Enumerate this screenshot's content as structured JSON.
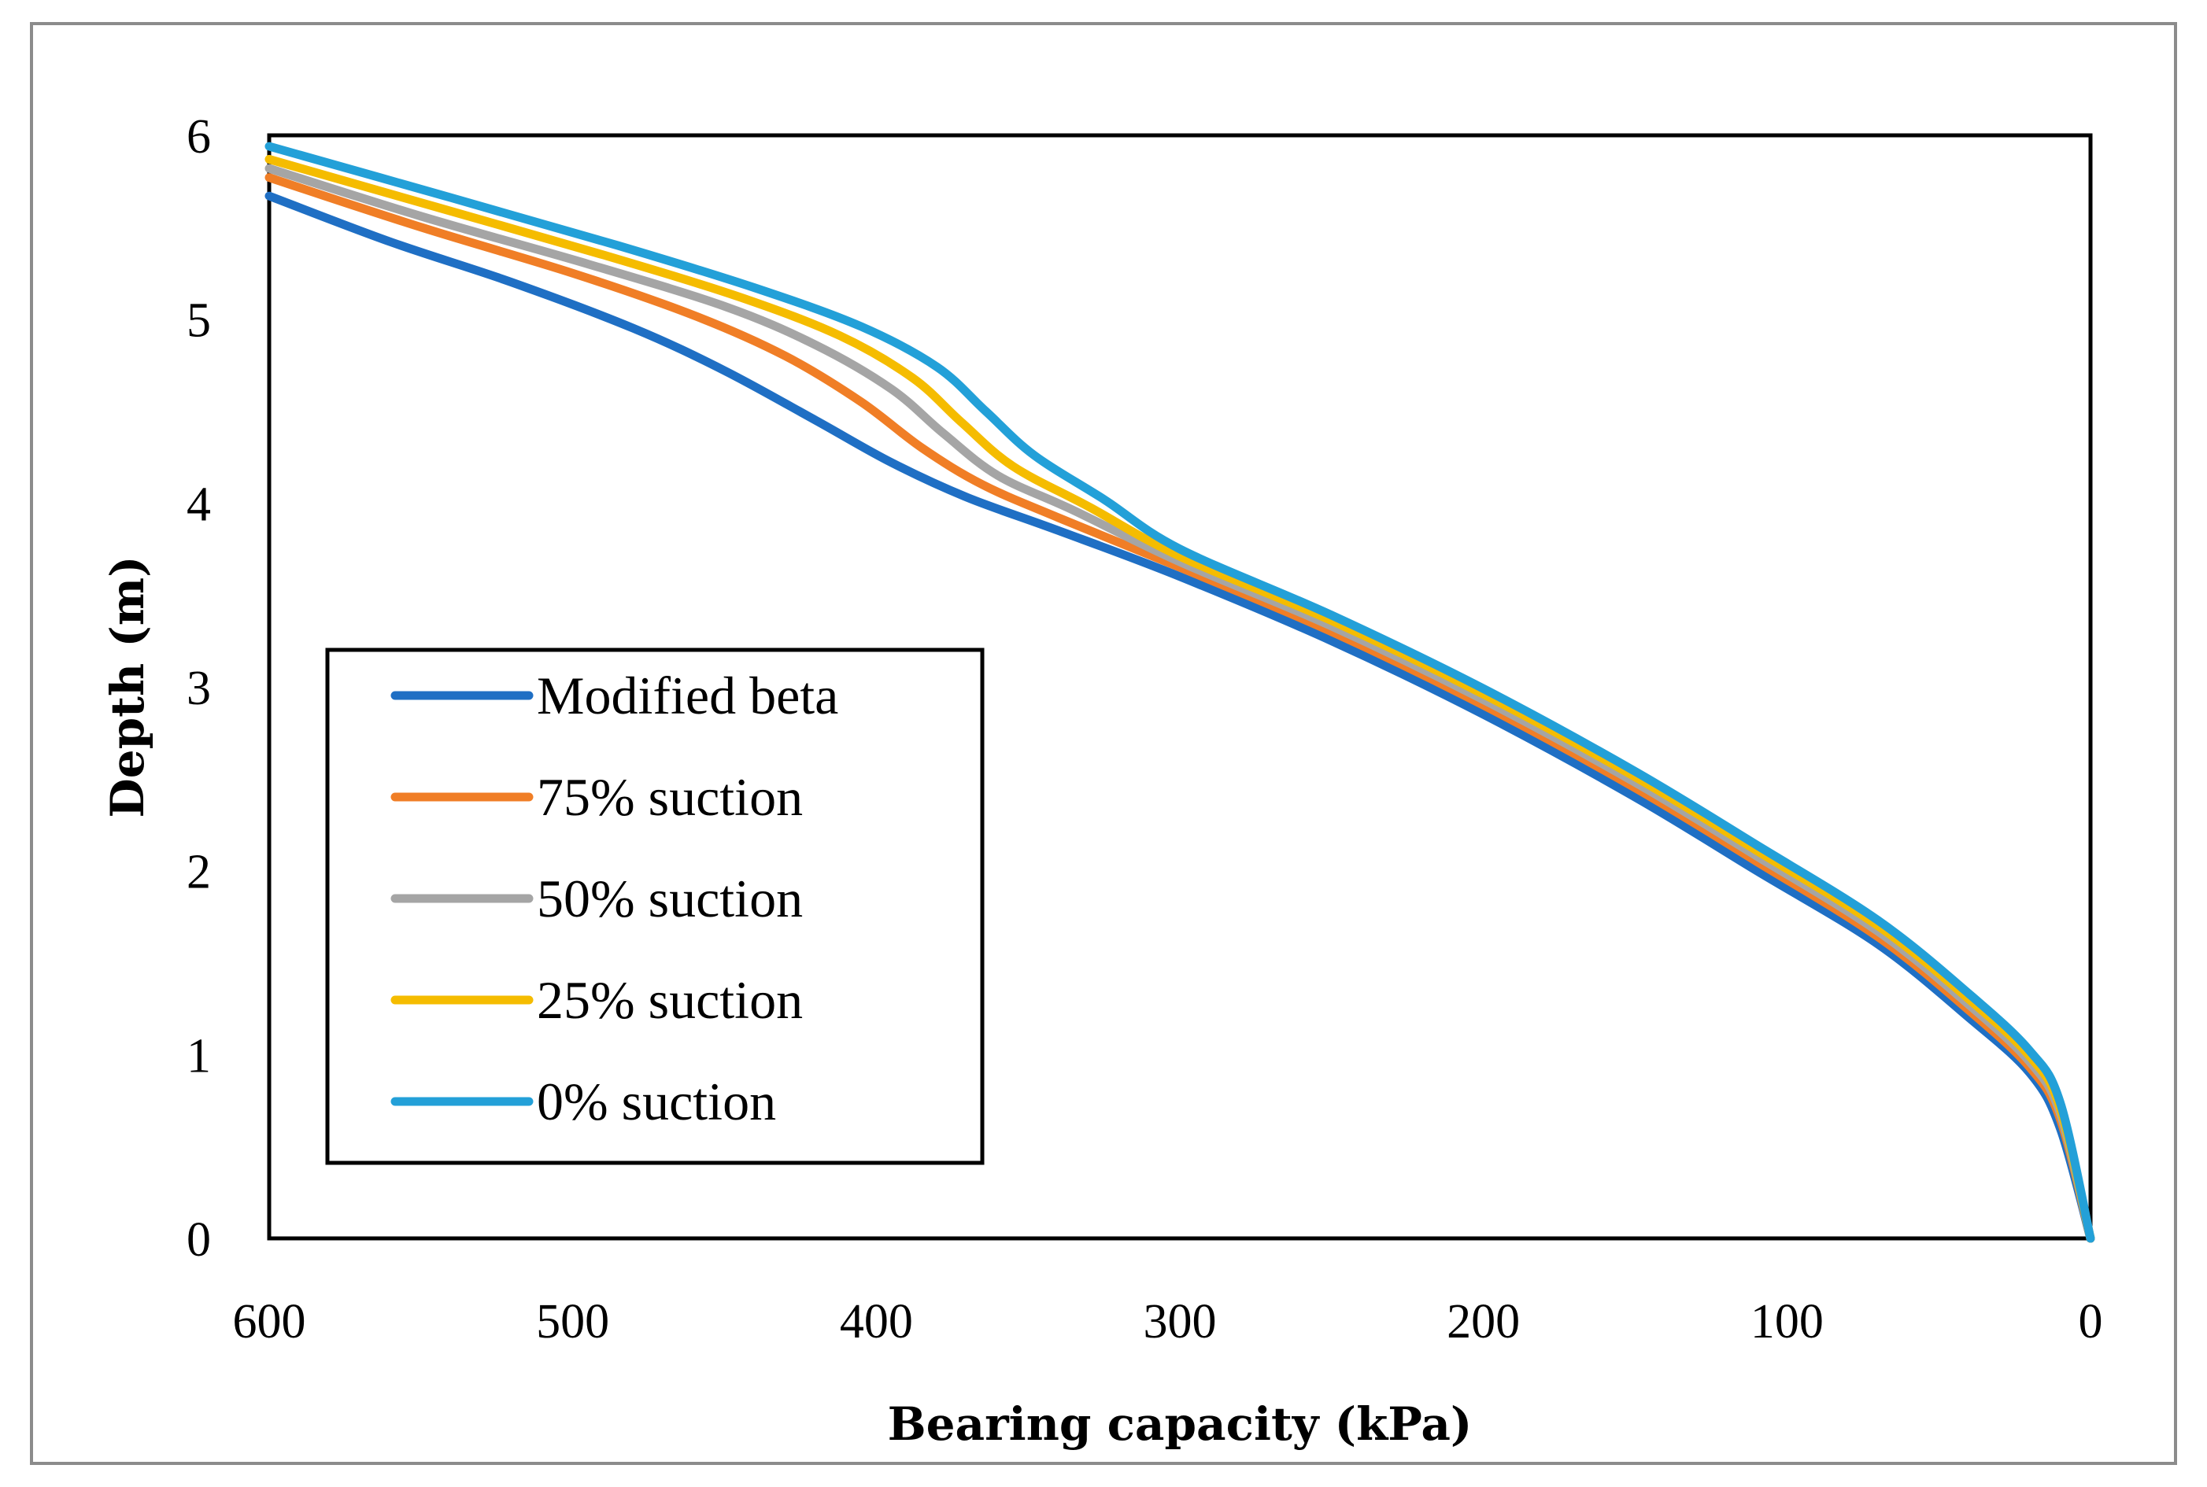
{
  "chart_data": {
    "type": "line",
    "title": "",
    "xlabel": "Bearing capacity (kPa)",
    "ylabel": "Depth (m)",
    "xlim": [
      600,
      0
    ],
    "ylim": [
      0,
      6
    ],
    "x_reversed": true,
    "xticks": [
      "600",
      "500",
      "400",
      "300",
      "200",
      "100",
      "0"
    ],
    "yticks": [
      "0",
      "1",
      "2",
      "3",
      "4",
      "5",
      "6"
    ],
    "grid": false,
    "legend_position": "left-center",
    "series": [
      {
        "name": "Modified beta",
        "color": "#1F6FC4",
        "points": [
          [
            0,
            0
          ],
          [
            10,
            0.6
          ],
          [
            20,
            0.9
          ],
          [
            40,
            1.2
          ],
          [
            70,
            1.6
          ],
          [
            110,
            2.0
          ],
          [
            150,
            2.4
          ],
          [
            200,
            2.85
          ],
          [
            250,
            3.25
          ],
          [
            300,
            3.6
          ],
          [
            340,
            3.85
          ],
          [
            370,
            4.03
          ],
          [
            395,
            4.22
          ],
          [
            420,
            4.45
          ],
          [
            450,
            4.72
          ],
          [
            480,
            4.95
          ],
          [
            520,
            5.2
          ],
          [
            560,
            5.42
          ],
          [
            600,
            5.67
          ]
        ]
      },
      {
        "name": "75% suction",
        "color": "#F07E26",
        "points": [
          [
            0,
            0
          ],
          [
            10,
            0.65
          ],
          [
            20,
            0.93
          ],
          [
            40,
            1.24
          ],
          [
            70,
            1.64
          ],
          [
            110,
            2.05
          ],
          [
            150,
            2.45
          ],
          [
            200,
            2.9
          ],
          [
            250,
            3.3
          ],
          [
            300,
            3.65
          ],
          [
            340,
            3.92
          ],
          [
            365,
            4.1
          ],
          [
            385,
            4.3
          ],
          [
            405,
            4.55
          ],
          [
            430,
            4.8
          ],
          [
            460,
            5.02
          ],
          [
            500,
            5.25
          ],
          [
            550,
            5.5
          ],
          [
            600,
            5.77
          ]
        ]
      },
      {
        "name": "50% suction",
        "color": "#A5A5A5",
        "points": [
          [
            0,
            0
          ],
          [
            10,
            0.68
          ],
          [
            20,
            0.96
          ],
          [
            40,
            1.27
          ],
          [
            70,
            1.67
          ],
          [
            110,
            2.08
          ],
          [
            150,
            2.48
          ],
          [
            200,
            2.93
          ],
          [
            250,
            3.33
          ],
          [
            300,
            3.68
          ],
          [
            335,
            3.96
          ],
          [
            360,
            4.15
          ],
          [
            378,
            4.38
          ],
          [
            395,
            4.62
          ],
          [
            420,
            4.86
          ],
          [
            450,
            5.07
          ],
          [
            495,
            5.3
          ],
          [
            550,
            5.56
          ],
          [
            600,
            5.82
          ]
        ]
      },
      {
        "name": "25% suction",
        "color": "#F5BC00",
        "points": [
          [
            0,
            0
          ],
          [
            10,
            0.71
          ],
          [
            20,
            0.99
          ],
          [
            40,
            1.3
          ],
          [
            70,
            1.7
          ],
          [
            110,
            2.11
          ],
          [
            150,
            2.51
          ],
          [
            200,
            2.96
          ],
          [
            250,
            3.36
          ],
          [
            300,
            3.71
          ],
          [
            330,
            3.98
          ],
          [
            355,
            4.2
          ],
          [
            372,
            4.44
          ],
          [
            388,
            4.68
          ],
          [
            412,
            4.91
          ],
          [
            445,
            5.12
          ],
          [
            490,
            5.35
          ],
          [
            545,
            5.61
          ],
          [
            600,
            5.87
          ]
        ]
      },
      {
        "name": "0% suction",
        "color": "#23A0D8",
        "points": [
          [
            0,
            0
          ],
          [
            10,
            0.74
          ],
          [
            20,
            1.02
          ],
          [
            40,
            1.33
          ],
          [
            70,
            1.73
          ],
          [
            110,
            2.14
          ],
          [
            150,
            2.54
          ],
          [
            200,
            2.99
          ],
          [
            250,
            3.39
          ],
          [
            300,
            3.75
          ],
          [
            325,
            4.02
          ],
          [
            348,
            4.26
          ],
          [
            364,
            4.5
          ],
          [
            380,
            4.74
          ],
          [
            405,
            4.96
          ],
          [
            440,
            5.17
          ],
          [
            485,
            5.4
          ],
          [
            540,
            5.66
          ],
          [
            600,
            5.94
          ]
        ]
      }
    ]
  }
}
